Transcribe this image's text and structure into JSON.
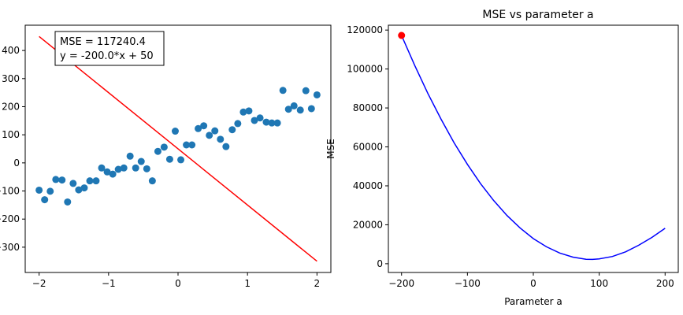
{
  "chart_data": [
    {
      "type": "scatter",
      "title": "",
      "xlabel": "",
      "ylabel": "",
      "xlim": [
        -2.2,
        2.2
      ],
      "ylim": [
        -390,
        490
      ],
      "xticks": [
        "−2",
        "−1",
        "0",
        "1",
        "2"
      ],
      "xtick_values": [
        -2,
        -1,
        0,
        1,
        2
      ],
      "yticks": [
        "−300",
        "−200",
        "−100",
        "0",
        "100",
        "200",
        "300",
        "400"
      ],
      "ytick_values": [
        -300,
        -200,
        -100,
        0,
        100,
        200,
        300,
        400
      ],
      "grid": false,
      "annotation_lines": [
        "MSE = 117240.4",
        "y = -200.0*x + 50"
      ],
      "points_color": "#1f77b4",
      "line_color": "#ff0000",
      "points": [
        [
          -2.0,
          -97
        ],
        [
          -1.92,
          -131
        ],
        [
          -1.84,
          -101
        ],
        [
          -1.76,
          -59
        ],
        [
          -1.67,
          -61
        ],
        [
          -1.59,
          -139
        ],
        [
          -1.51,
          -73
        ],
        [
          -1.43,
          -96
        ],
        [
          -1.35,
          -89
        ],
        [
          -1.27,
          -64
        ],
        [
          -1.18,
          -64
        ],
        [
          -1.1,
          -18
        ],
        [
          -1.02,
          -32
        ],
        [
          -0.94,
          -40
        ],
        [
          -0.86,
          -23
        ],
        [
          -0.78,
          -18
        ],
        [
          -0.69,
          24
        ],
        [
          -0.61,
          -18
        ],
        [
          -0.53,
          5
        ],
        [
          -0.45,
          -21
        ],
        [
          -0.37,
          -64
        ],
        [
          -0.29,
          41
        ],
        [
          -0.2,
          56
        ],
        [
          -0.12,
          13
        ],
        [
          -0.04,
          113
        ],
        [
          0.04,
          11
        ],
        [
          0.12,
          64
        ],
        [
          0.2,
          64
        ],
        [
          0.29,
          122
        ],
        [
          0.37,
          132
        ],
        [
          0.45,
          98
        ],
        [
          0.53,
          114
        ],
        [
          0.61,
          84
        ],
        [
          0.69,
          58
        ],
        [
          0.78,
          118
        ],
        [
          0.86,
          140
        ],
        [
          0.94,
          181
        ],
        [
          1.02,
          185
        ],
        [
          1.1,
          151
        ],
        [
          1.18,
          160
        ],
        [
          1.27,
          145
        ],
        [
          1.35,
          142
        ],
        [
          1.43,
          142
        ],
        [
          1.51,
          258
        ],
        [
          1.59,
          191
        ],
        [
          1.67,
          203
        ],
        [
          1.76,
          188
        ],
        [
          1.84,
          257
        ],
        [
          1.92,
          193
        ],
        [
          2.0,
          242
        ]
      ],
      "line": {
        "x": [
          -2,
          2
        ],
        "y": [
          450,
          -350
        ]
      }
    },
    {
      "type": "line",
      "title": "MSE vs parameter a",
      "xlabel": "Parameter a",
      "ylabel": "MSE",
      "xlim": [
        -220,
        220
      ],
      "ylim": [
        -4500,
        122500
      ],
      "xticks": [
        "−200",
        "−100",
        "0",
        "100",
        "200"
      ],
      "xtick_values": [
        -200,
        -100,
        0,
        100,
        200
      ],
      "yticks": [
        "0",
        "20000",
        "40000",
        "60000",
        "80000",
        "100000",
        "120000"
      ],
      "ytick_values": [
        0,
        20000,
        40000,
        60000,
        80000,
        100000,
        120000
      ],
      "grid": false,
      "line_color": "#0000ff",
      "marker_color": "#ff0000",
      "curve": {
        "x": [
          -200,
          -180,
          -160,
          -140,
          -120,
          -100,
          -80,
          -60,
          -40,
          -20,
          0,
          20,
          40,
          60,
          80,
          90,
          100,
          120,
          140,
          160,
          180,
          200
        ],
        "y": [
          117240,
          101800,
          87400,
          74200,
          62000,
          51000,
          41100,
          32400,
          24800,
          18300,
          12900,
          8700,
          5500,
          3400,
          2300,
          2200,
          2500,
          3700,
          6100,
          9500,
          13500,
          18200
        ]
      },
      "marker": {
        "x": -200,
        "y": 117240
      }
    }
  ]
}
